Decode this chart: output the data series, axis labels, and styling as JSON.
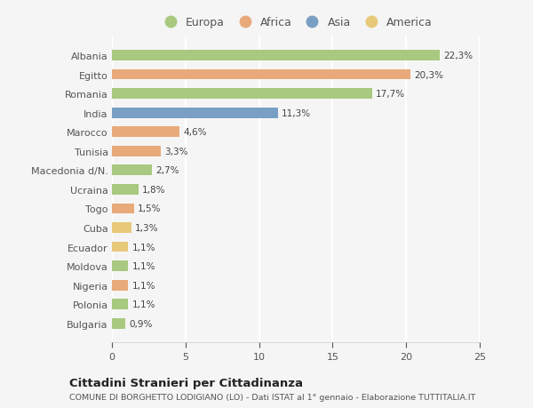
{
  "countries": [
    "Albania",
    "Egitto",
    "Romania",
    "India",
    "Marocco",
    "Tunisia",
    "Macedonia d/N.",
    "Ucraina",
    "Togo",
    "Cuba",
    "Ecuador",
    "Moldova",
    "Nigeria",
    "Polonia",
    "Bulgaria"
  ],
  "values": [
    22.3,
    20.3,
    17.7,
    11.3,
    4.6,
    3.3,
    2.7,
    1.8,
    1.5,
    1.3,
    1.1,
    1.1,
    1.1,
    1.1,
    0.9
  ],
  "labels": [
    "22,3%",
    "20,3%",
    "17,7%",
    "11,3%",
    "4,6%",
    "3,3%",
    "2,7%",
    "1,8%",
    "1,5%",
    "1,3%",
    "1,1%",
    "1,1%",
    "1,1%",
    "1,1%",
    "0,9%"
  ],
  "continents": [
    "Europa",
    "Africa",
    "Europa",
    "Asia",
    "Africa",
    "Africa",
    "Europa",
    "Europa",
    "Africa",
    "America",
    "America",
    "Europa",
    "Africa",
    "Europa",
    "Europa"
  ],
  "continent_colors": {
    "Europa": "#a8c97f",
    "Africa": "#e8aa7a",
    "Asia": "#7a9fc4",
    "America": "#e8c97a"
  },
  "legend_order": [
    "Europa",
    "Africa",
    "Asia",
    "America"
  ],
  "title": "Cittadini Stranieri per Cittadinanza",
  "subtitle": "COMUNE DI BORGHETTO LODIGIANO (LO) - Dati ISTAT al 1° gennaio - Elaborazione TUTTITALIA.IT",
  "xlim": [
    0,
    25
  ],
  "xticks": [
    0,
    5,
    10,
    15,
    20,
    25
  ],
  "background_color": "#f5f5f5",
  "grid_color": "#ffffff",
  "bar_height": 0.55
}
